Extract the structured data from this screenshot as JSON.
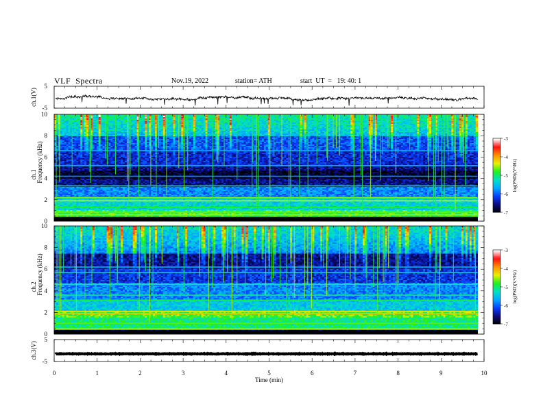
{
  "header": {
    "title": "VLF  Spectra",
    "date": "Nov.19, 2022",
    "station": "station= ATH",
    "start": "start  UT  =   19: 40: 1"
  },
  "colors": {
    "spectrum_scale": [
      "#000000",
      "#0b0b7a",
      "#0a3cff",
      "#00a8ff",
      "#00e0c8",
      "#20f020",
      "#e8f000",
      "#ff9000",
      "#ff1010",
      "#ffffff"
    ],
    "trace": "#000000"
  },
  "chart_data": [
    {
      "type": "line",
      "name": "ch1-waveform",
      "ylabel": "ch.1(V)",
      "ylim": [
        -5,
        5
      ],
      "yticks": [
        "5",
        "-5"
      ],
      "xlim": [
        0,
        10
      ],
      "approx_level": -0.5,
      "x_end": 9.85
    },
    {
      "type": "heatmap",
      "name": "ch1-spectrogram",
      "ylabel_channel": "ch.1",
      "ylabel": "Frequency  (kHz)",
      "ylim": [
        0,
        10
      ],
      "yticks": [
        "0",
        "2",
        "4",
        "6",
        "8",
        "10"
      ],
      "xlim": [
        0,
        10
      ],
      "x_end": 9.85,
      "colorbar": {
        "label": "log(PSD)(V²/Hz)",
        "range": [
          -7,
          -3
        ],
        "ticks": [
          "-3",
          "-4",
          "-5",
          "-6",
          "-7"
        ]
      }
    },
    {
      "type": "heatmap",
      "name": "ch2-spectrogram",
      "ylabel_channel": "ch.2",
      "ylabel": "Frequency  (kHz)",
      "ylim": [
        0,
        10
      ],
      "yticks": [
        "0",
        "2",
        "4",
        "6",
        "8",
        "10"
      ],
      "xlim": [
        0,
        10
      ],
      "x_end": 9.85,
      "colorbar": {
        "label": "log(PSD)(V²/Hz)",
        "range": [
          -7,
          -3
        ],
        "ticks": [
          "-3",
          "-4",
          "-5",
          "-6",
          "-7"
        ]
      }
    },
    {
      "type": "line",
      "name": "ch3-waveform",
      "ylabel": "ch.3(V)",
      "ylim": [
        -5,
        5
      ],
      "yticks": [
        "5",
        "-5"
      ],
      "xlim": [
        0,
        10
      ],
      "approx_level": -1.5,
      "x_end": 9.85,
      "xlabel": "Time  (min)",
      "xticks": [
        "0",
        "1",
        "2",
        "3",
        "4",
        "5",
        "6",
        "7",
        "8",
        "9",
        "10"
      ]
    }
  ]
}
